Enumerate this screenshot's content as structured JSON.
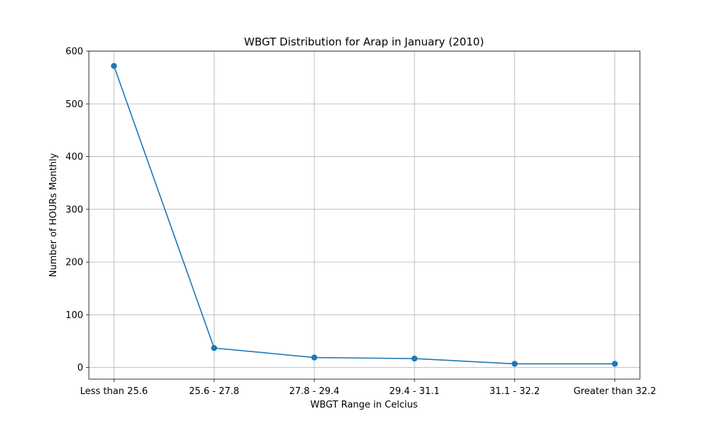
{
  "chart_data": {
    "type": "line",
    "title": "WBGT Distribution for Arap in January (2010)",
    "xlabel": "WBGT Range in Celcius",
    "ylabel": "Number of HOURs Monthly",
    "categories": [
      "Less than 25.6",
      "25.6 - 27.8",
      "27.8 - 29.4",
      "29.4 - 31.1",
      "31.1 - 32.2",
      "Greater than 32.2"
    ],
    "series": [
      {
        "values": [
          572,
          37,
          19,
          17,
          7,
          7
        ],
        "color": "#1f77b4",
        "marker": "circle"
      }
    ],
    "ylim": [
      -22,
      600
    ],
    "yticks": [
      0,
      100,
      200,
      300,
      400,
      500,
      600
    ],
    "grid": true,
    "legend": "none"
  }
}
